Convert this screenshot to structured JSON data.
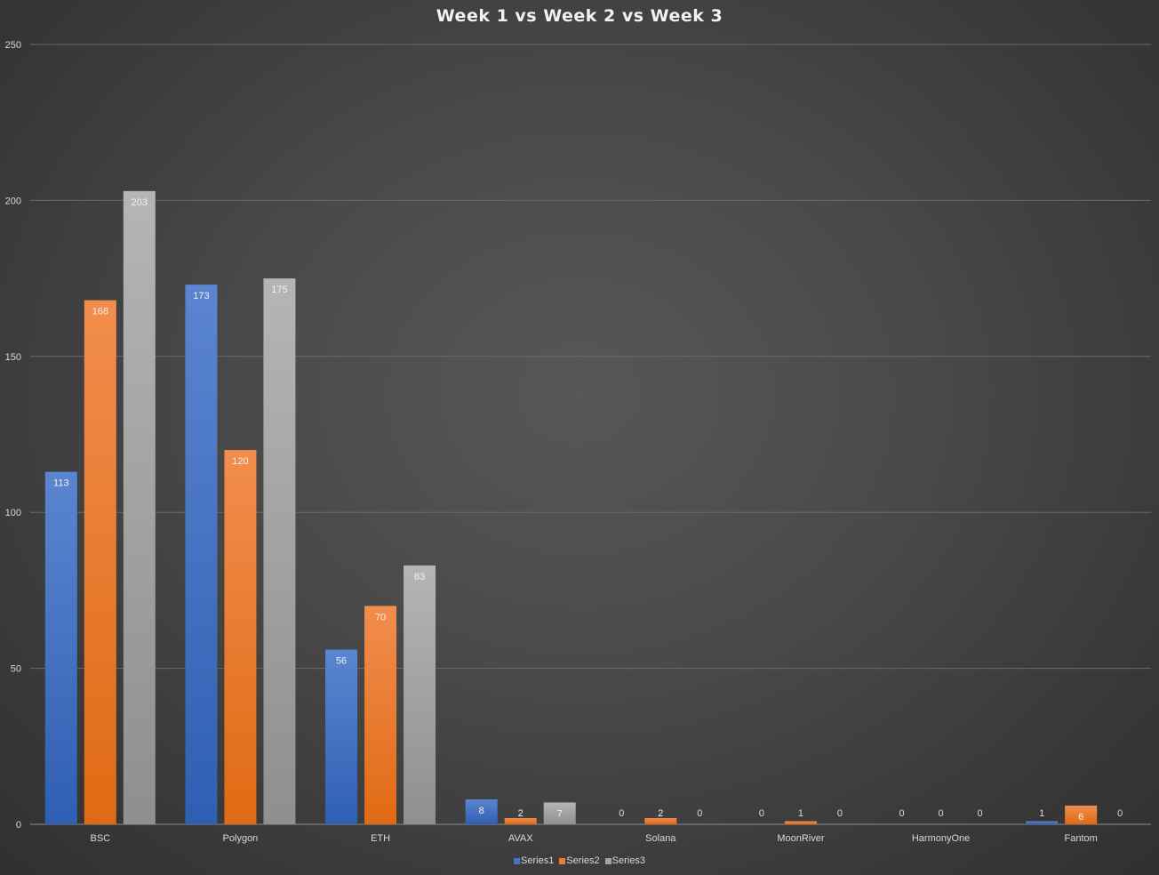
{
  "chart_data": {
    "type": "bar",
    "title": "Week 1 vs Week 2 vs Week 3",
    "categories": [
      "BSC",
      "Polygon",
      "ETH",
      "AVAX",
      "Solana",
      "MoonRiver",
      "HarmonyOne",
      "Fantom"
    ],
    "series": [
      {
        "name": "Series1",
        "color": "#4472c4",
        "values": [
          113,
          173,
          56,
          8,
          0,
          0,
          0,
          1
        ]
      },
      {
        "name": "Series2",
        "color": "#ed7d31",
        "values": [
          168,
          120,
          70,
          2,
          2,
          1,
          0,
          6
        ]
      },
      {
        "name": "Series3",
        "color": "#a5a5a5",
        "values": [
          203,
          175,
          83,
          7,
          0,
          0,
          0,
          0
        ]
      }
    ],
    "ylim": [
      0,
      250
    ],
    "yticks": [
      0,
      50,
      100,
      150,
      200,
      250
    ],
    "grid": true,
    "legend": "bottom",
    "data_labels": true
  }
}
